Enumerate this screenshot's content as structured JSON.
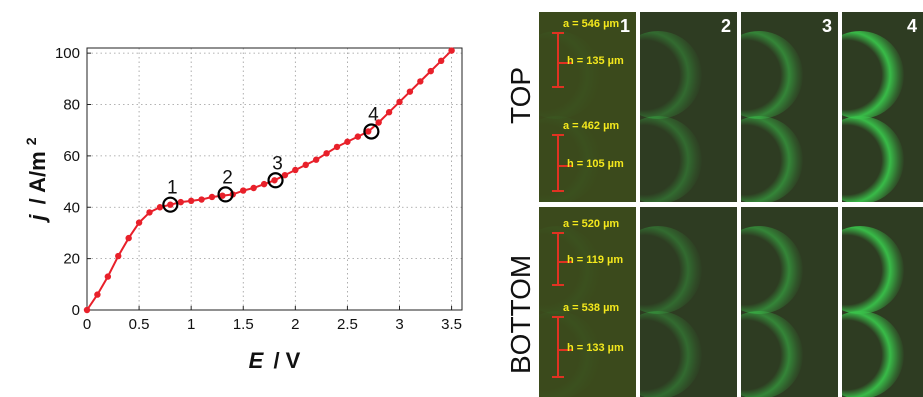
{
  "chart_data": {
    "type": "line",
    "xlabel_var": "E",
    "xlabel_unit": "/ V",
    "ylabel_var": "j",
    "ylabel_unit": "/ A/m",
    "ylabel_sup": "2",
    "xlim": [
      0,
      3.6
    ],
    "ylim": [
      0,
      102
    ],
    "xticks": [
      "0",
      "0.5",
      "1",
      "1.5",
      "2",
      "2.5",
      "3",
      "3.5"
    ],
    "yticks": [
      "0",
      "20",
      "40",
      "60",
      "80",
      "100"
    ],
    "grid": true,
    "series": [
      {
        "color": "#e8202a",
        "x": [
          0,
          0.1,
          0.2,
          0.3,
          0.4,
          0.5,
          0.6,
          0.7,
          0.8,
          0.9,
          1.0,
          1.1,
          1.2,
          1.3,
          1.4,
          1.5,
          1.6,
          1.7,
          1.8,
          1.9,
          2.0,
          2.1,
          2.2,
          2.3,
          2.4,
          2.5,
          2.6,
          2.7,
          2.8,
          2.9,
          3.0,
          3.1,
          3.2,
          3.3,
          3.4,
          3.5
        ],
        "y": [
          0,
          6,
          13,
          21,
          28,
          34,
          38,
          40,
          41,
          42,
          42.5,
          43,
          44,
          44.5,
          45,
          46.5,
          47.5,
          49,
          50.5,
          52.5,
          54.5,
          56.5,
          58.5,
          61,
          63.5,
          65.5,
          67.5,
          69.5,
          73,
          77,
          81,
          85,
          89,
          93,
          97,
          101
        ]
      }
    ],
    "annotations": [
      {
        "label": "1",
        "x": 0.8,
        "y": 41
      },
      {
        "label": "2",
        "x": 1.33,
        "y": 45
      },
      {
        "label": "3",
        "x": 1.81,
        "y": 50.5
      },
      {
        "label": "4",
        "x": 2.73,
        "y": 69.5
      }
    ]
  },
  "micrographs": {
    "rows": [
      "TOP",
      "BOTTOM"
    ],
    "columns": [
      "1",
      "2",
      "3",
      "4"
    ],
    "annotations": {
      "top_upper_a": "a = 546 µm",
      "top_upper_h": "h = 135 µm",
      "top_lower_a": "a = 462 µm",
      "top_lower_h": "h = 105 µm",
      "bottom_upper_a": "a = 520 µm",
      "bottom_upper_h": "h = 119 µm",
      "bottom_lower_a": "a = 538 µm",
      "bottom_lower_h": "h = 133 µm"
    },
    "glow_intensity": [
      0.05,
      0.35,
      0.55,
      0.95
    ],
    "colors": {
      "glow": "#39c24a",
      "background": "#2c3a1d",
      "annotation": "#f4e81c",
      "scale_bar": "#e03222"
    }
  }
}
